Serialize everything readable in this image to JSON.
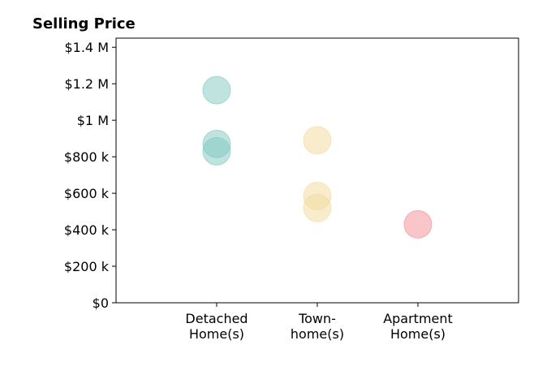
{
  "chart_data": {
    "type": "scatter",
    "title": "Selling Price",
    "xlabel": "",
    "ylabel": "",
    "categories": [
      "Detached Home(s)",
      "Town-home(s)",
      "Apartment Home(s)"
    ],
    "category_label_lines": [
      [
        "Detached",
        "Home(s)"
      ],
      [
        "Town-",
        "home(s)"
      ],
      [
        "Apartment",
        "Home(s)"
      ]
    ],
    "ylim": [
      0,
      1450000
    ],
    "y_ticks": [
      0,
      200000,
      400000,
      600000,
      800000,
      1000000,
      1200000,
      1400000
    ],
    "y_tick_labels": [
      "$0",
      "$200 k",
      "$400 k",
      "$600 k",
      "$800 k",
      "$1 M",
      "$1.2 M",
      "$1.4 M"
    ],
    "grid": false,
    "points": [
      {
        "category": "Detached Home(s)",
        "y": 1165000,
        "color": "#7fc8bf"
      },
      {
        "category": "Detached Home(s)",
        "y": 870000,
        "color": "#7fc8bf"
      },
      {
        "category": "Detached Home(s)",
        "y": 830000,
        "color": "#7fc8bf"
      },
      {
        "category": "Town-home(s)",
        "y": 890000,
        "color": "#f4d99b"
      },
      {
        "category": "Town-home(s)",
        "y": 585000,
        "color": "#f4d99b"
      },
      {
        "category": "Town-home(s)",
        "y": 520000,
        "color": "#f4d99b"
      },
      {
        "category": "Apartment Home(s)",
        "y": 430000,
        "color": "#f28b93"
      }
    ]
  }
}
